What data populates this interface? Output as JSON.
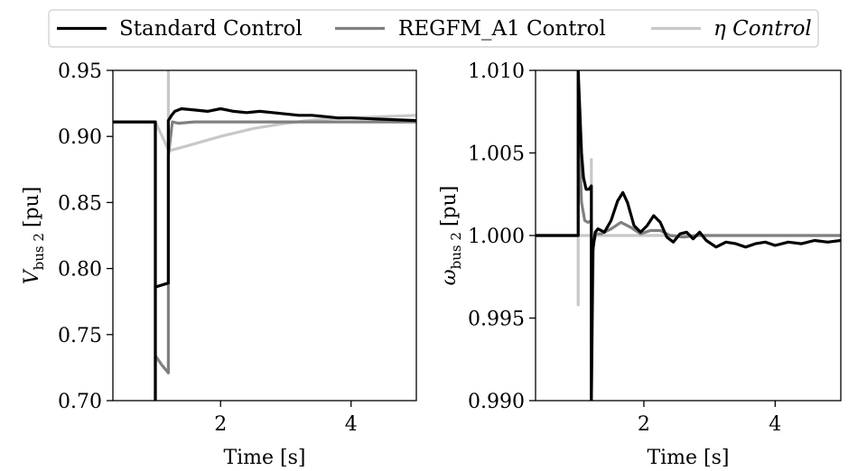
{
  "legend": {
    "placement": "top-center",
    "entries": [
      {
        "label": "Standard Control",
        "color": "#000000"
      },
      {
        "label": "REGFM_A1 Control",
        "color": "#808080"
      },
      {
        "label": "η Control",
        "color": "#c8c8c8"
      }
    ]
  },
  "chart_data": [
    {
      "type": "line",
      "title": "",
      "xlabel": "Time [s]",
      "ylabel_main": "V",
      "ylabel_sub": "bus 2",
      "ylabel_unit": "[pu]",
      "xlim": [
        0.35,
        5.0
      ],
      "ylim": [
        0.7,
        0.95
      ],
      "xticks": [
        2,
        4
      ],
      "xtick_labels": [
        "2",
        "4"
      ],
      "yticks": [
        0.7,
        0.75,
        0.8,
        0.85,
        0.9,
        0.95
      ],
      "ytick_labels": [
        "0.70",
        "0.75",
        "0.80",
        "0.85",
        "0.90",
        "0.95"
      ],
      "grid": false,
      "series": [
        {
          "name": "Standard Control",
          "color": "#000000",
          "x": [
            0.35,
            1.0,
            1.0,
            1.0,
            1.2,
            1.2,
            1.25,
            1.3,
            1.4,
            1.6,
            1.8,
            2.0,
            2.2,
            2.4,
            2.6,
            2.8,
            3.0,
            3.2,
            3.4,
            3.6,
            3.8,
            4.0,
            4.5,
            5.0
          ],
          "y": [
            0.911,
            0.911,
            0.7,
            0.786,
            0.789,
            0.912,
            0.916,
            0.919,
            0.921,
            0.92,
            0.919,
            0.921,
            0.919,
            0.918,
            0.919,
            0.918,
            0.917,
            0.916,
            0.916,
            0.915,
            0.914,
            0.914,
            0.913,
            0.912
          ]
        },
        {
          "name": "REGFM_A1 Control",
          "color": "#808080",
          "x": [
            0.35,
            1.0,
            1.0,
            1.0,
            1.1,
            1.2,
            1.2,
            1.26,
            1.35,
            1.6,
            2.0,
            2.5,
            3.0,
            4.0,
            5.0
          ],
          "y": [
            0.911,
            0.911,
            0.7,
            0.734,
            0.727,
            0.721,
            0.885,
            0.911,
            0.91,
            0.911,
            0.911,
            0.911,
            0.911,
            0.911,
            0.911
          ]
        },
        {
          "name": "η Control",
          "color": "#c8c8c8",
          "x": [
            0.35,
            1.0,
            1.0,
            1.0,
            1.0,
            1.2,
            1.2,
            1.2,
            1.5,
            2.0,
            2.5,
            3.0,
            3.5,
            4.0,
            4.5,
            5.0
          ],
          "y": [
            0.911,
            0.911,
            0.7,
            0.7,
            0.911,
            0.89,
            0.95,
            0.889,
            0.893,
            0.9,
            0.906,
            0.91,
            0.913,
            0.914,
            0.915,
            0.916
          ]
        }
      ]
    },
    {
      "type": "line",
      "title": "",
      "xlabel": "Time [s]",
      "ylabel_main": "ω",
      "ylabel_sub": "bus 2",
      "ylabel_unit": "[pu]",
      "xlim": [
        0.35,
        5.0
      ],
      "ylim": [
        0.99,
        1.01
      ],
      "xticks": [
        2,
        4
      ],
      "xtick_labels": [
        "2",
        "4"
      ],
      "yticks": [
        0.99,
        0.995,
        1.0,
        1.005,
        1.01
      ],
      "ytick_labels": [
        "0.990",
        "0.995",
        "1.000",
        "1.005",
        "1.010"
      ],
      "grid": false,
      "series": [
        {
          "name": "Standard Control",
          "color": "#000000",
          "x": [
            0.35,
            1.0,
            1.0,
            1.02,
            1.05,
            1.08,
            1.12,
            1.16,
            1.2,
            1.2,
            1.22,
            1.26,
            1.3,
            1.4,
            1.5,
            1.6,
            1.68,
            1.75,
            1.85,
            1.95,
            2.05,
            2.15,
            2.25,
            2.35,
            2.45,
            2.55,
            2.65,
            2.75,
            2.85,
            2.95,
            3.1,
            3.25,
            3.4,
            3.55,
            3.7,
            3.85,
            4.0,
            4.2,
            4.4,
            4.6,
            4.8,
            5.0
          ],
          "y": [
            1.0,
            1.0,
            1.01,
            1.008,
            1.005,
            1.0035,
            1.0028,
            1.0028,
            1.003,
            0.99,
            0.999,
            1.0002,
            1.0004,
            1.0002,
            1.0009,
            1.0021,
            1.0026,
            1.002,
            1.0006,
            1.0002,
            1.0006,
            1.0012,
            1.0008,
            0.9999,
            0.9996,
            1.0001,
            1.0002,
            0.9998,
            1.0002,
            0.9997,
            0.9993,
            0.9996,
            0.9995,
            0.9993,
            0.9995,
            0.9996,
            0.9994,
            0.9996,
            0.9995,
            0.9997,
            0.9996,
            0.9997
          ]
        },
        {
          "name": "REGFM_A1 Control",
          "color": "#808080",
          "x": [
            0.35,
            1.0,
            1.0,
            1.02,
            1.05,
            1.1,
            1.15,
            1.2,
            1.2,
            1.23,
            1.27,
            1.35,
            1.5,
            1.65,
            1.8,
            1.95,
            2.1,
            2.25,
            2.4,
            2.6,
            2.8,
            3.0,
            3.5,
            4.0,
            4.5,
            5.0
          ],
          "y": [
            1.0,
            1.0,
            1.01,
            1.005,
            1.002,
            1.0009,
            1.0008,
            1.0009,
            0.99,
            0.9995,
            1.0001,
            1.0001,
            1.0004,
            1.0008,
            1.0005,
            1.0001,
            1.0003,
            1.0003,
            1.0,
            0.9999,
            1.0,
            1.0,
            1.0,
            1.0,
            1.0,
            1.0
          ]
        },
        {
          "name": "η Control",
          "color": "#c8c8c8",
          "x": [
            0.35,
            1.0,
            1.0,
            1.0,
            1.0,
            1.2,
            1.2,
            1.2,
            1.2,
            1.3,
            2.0,
            3.0,
            4.0,
            5.0
          ],
          "y": [
            1.0,
            1.0,
            1.01,
            0.9958,
            1.0,
            1.0,
            1.0046,
            0.99,
            1.0,
            1.0,
            1.0,
            1.0,
            1.0,
            1.0
          ]
        }
      ]
    }
  ]
}
